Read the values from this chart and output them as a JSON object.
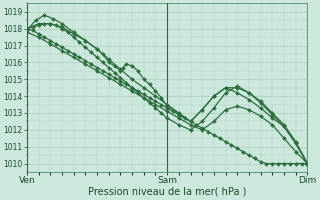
{
  "bg_color": "#cce8dc",
  "grid_color": "#aaccbb",
  "line_color": "#2d6e3e",
  "vline_color": "#3a5a4a",
  "xlabel": "Pression niveau de la mer( hPa )",
  "xlabel_fontsize": 7,
  "ylim": [
    1009.5,
    1019.5
  ],
  "yticks": [
    1010,
    1011,
    1012,
    1013,
    1014,
    1015,
    1016,
    1017,
    1018,
    1019
  ],
  "xtick_labels": [
    "Ven",
    "Sam",
    "Dim"
  ],
  "xtick_positions": [
    0,
    48,
    96
  ],
  "vline_positions": [
    0,
    48,
    96
  ],
  "series": [
    {
      "x": [
        0,
        2,
        4,
        6,
        8,
        10,
        12,
        14,
        16,
        18,
        20,
        22,
        24,
        26,
        28,
        30,
        32,
        34,
        36,
        38,
        40,
        42,
        44,
        46,
        48,
        50,
        52,
        54,
        56,
        58,
        60,
        62,
        64,
        66,
        68,
        70,
        72,
        74,
        76,
        78,
        80,
        82,
        84,
        86,
        88,
        90,
        92,
        94,
        96
      ],
      "y": [
        1018.0,
        1017.9,
        1017.7,
        1017.5,
        1017.3,
        1017.1,
        1016.9,
        1016.7,
        1016.5,
        1016.3,
        1016.1,
        1015.9,
        1015.7,
        1015.5,
        1015.3,
        1015.1,
        1014.9,
        1014.7,
        1014.5,
        1014.3,
        1014.1,
        1013.9,
        1013.7,
        1013.5,
        1013.3,
        1013.1,
        1012.9,
        1012.7,
        1012.5,
        1012.3,
        1012.1,
        1011.9,
        1011.7,
        1011.5,
        1011.3,
        1011.1,
        1010.9,
        1010.7,
        1010.5,
        1010.3,
        1010.1,
        1010.0,
        1010.0,
        1010.0,
        1010.0,
        1010.0,
        1010.0,
        1010.0,
        1010.0
      ]
    },
    {
      "x": [
        0,
        3,
        6,
        9,
        12,
        16,
        20,
        24,
        28,
        32,
        36,
        40,
        44,
        48,
        52,
        56,
        60,
        64,
        68,
        72,
        76,
        80,
        84,
        88,
        92,
        96
      ],
      "y": [
        1017.9,
        1018.5,
        1018.8,
        1018.6,
        1018.3,
        1017.8,
        1017.3,
        1016.8,
        1016.2,
        1015.6,
        1015.0,
        1014.5,
        1014.0,
        1013.5,
        1013.0,
        1012.5,
        1013.2,
        1014.0,
        1014.5,
        1014.2,
        1013.8,
        1013.3,
        1012.7,
        1012.2,
        1011.2,
        1010.0
      ]
    },
    {
      "x": [
        0,
        4,
        8,
        12,
        16,
        20,
        24,
        26,
        28,
        30,
        32,
        33,
        34,
        36,
        38,
        40,
        42,
        44,
        46,
        48,
        52,
        56,
        60,
        64,
        68,
        72,
        76,
        80,
        84,
        88,
        92,
        96
      ],
      "y": [
        1018.0,
        1018.3,
        1018.3,
        1018.1,
        1017.7,
        1017.3,
        1016.8,
        1016.5,
        1016.0,
        1015.8,
        1015.5,
        1015.7,
        1015.9,
        1015.8,
        1015.5,
        1015.0,
        1014.7,
        1014.3,
        1013.9,
        1013.4,
        1012.9,
        1012.5,
        1013.2,
        1014.0,
        1014.5,
        1014.5,
        1014.2,
        1013.7,
        1013.0,
        1012.3,
        1011.3,
        1010.0
      ]
    },
    {
      "x": [
        0,
        2,
        4,
        6,
        8,
        10,
        12,
        14,
        16,
        18,
        20,
        22,
        24,
        26,
        28,
        30,
        32,
        34,
        36,
        38,
        40,
        42,
        44,
        46,
        48,
        52,
        56,
        60,
        64,
        68,
        72,
        76,
        80,
        84,
        88,
        92,
        96
      ],
      "y": [
        1018.0,
        1018.1,
        1018.2,
        1018.3,
        1018.3,
        1018.2,
        1018.0,
        1017.8,
        1017.5,
        1017.2,
        1016.9,
        1016.6,
        1016.3,
        1016.0,
        1015.7,
        1015.4,
        1015.1,
        1014.8,
        1014.5,
        1014.2,
        1013.9,
        1013.6,
        1013.3,
        1013.0,
        1012.7,
        1012.3,
        1012.0,
        1012.5,
        1013.3,
        1014.2,
        1014.6,
        1014.2,
        1013.6,
        1012.9,
        1012.2,
        1011.2,
        1010.0
      ]
    },
    {
      "x": [
        0,
        4,
        8,
        12,
        16,
        20,
        24,
        28,
        32,
        36,
        40,
        44,
        48,
        52,
        56,
        60,
        64,
        68,
        72,
        76,
        80,
        84,
        88,
        92,
        96
      ],
      "y": [
        1017.8,
        1017.5,
        1017.1,
        1016.7,
        1016.3,
        1015.9,
        1015.5,
        1015.1,
        1014.7,
        1014.3,
        1013.9,
        1013.5,
        1013.1,
        1012.7,
        1012.3,
        1012.0,
        1012.5,
        1013.2,
        1013.4,
        1013.2,
        1012.8,
        1012.3,
        1011.5,
        1010.7,
        1010.0
      ]
    }
  ]
}
